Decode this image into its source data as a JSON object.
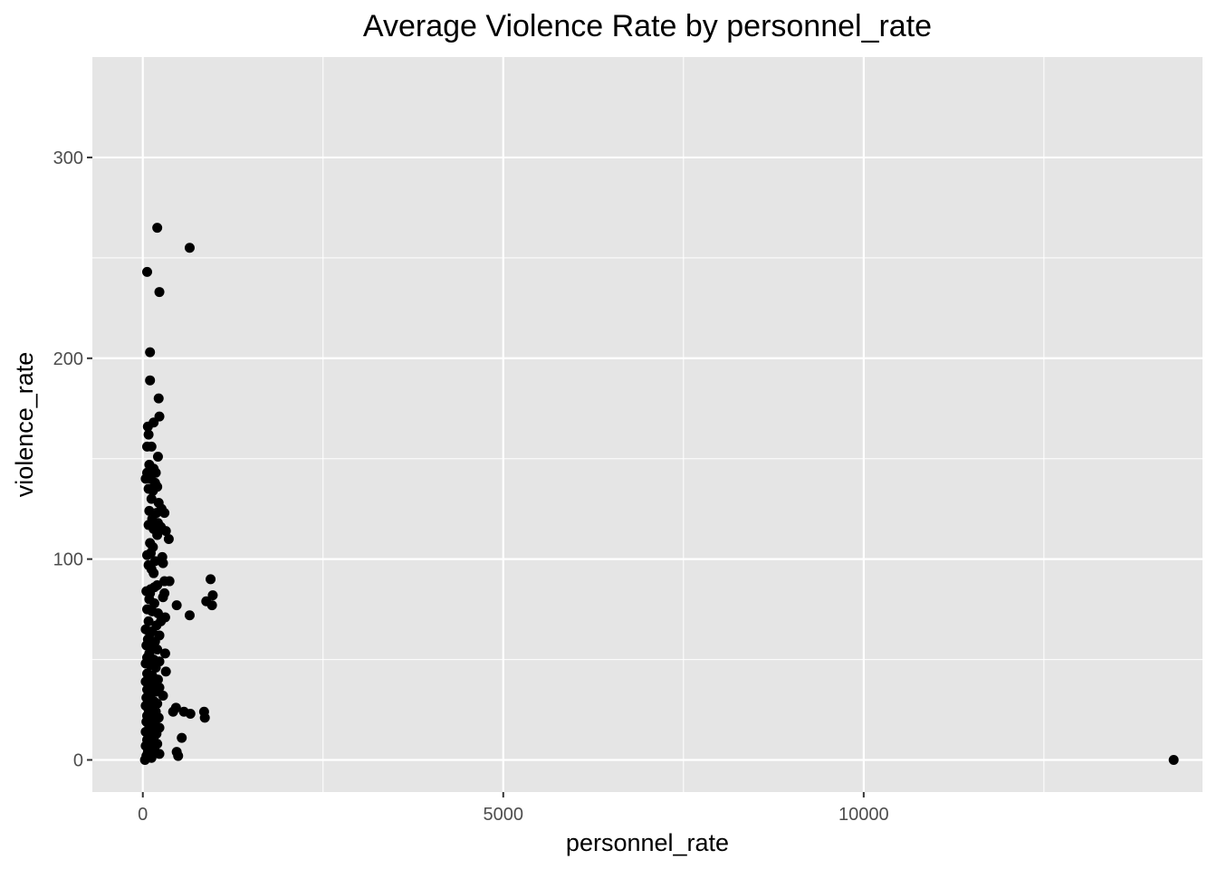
{
  "chart_data": {
    "type": "scatter",
    "title": "Average Violence Rate by personnel_rate",
    "xlabel": "personnel_rate",
    "ylabel": "violence_rate",
    "xlim": [
      -700,
      14700
    ],
    "ylim": [
      -16,
      350
    ],
    "x_ticks": [
      0,
      5000,
      10000
    ],
    "x_tick_labels": [
      "0",
      "5000",
      "10000"
    ],
    "x_minor_ticks": [
      2500,
      7500,
      12500
    ],
    "y_ticks": [
      0,
      100,
      200,
      300
    ],
    "y_tick_labels": [
      "0",
      "100",
      "200",
      "300"
    ],
    "y_minor_ticks": [
      50,
      150,
      250
    ],
    "grid": true,
    "legend": "none",
    "colors": {
      "panel": "#e5e5e5",
      "grid": "#ffffff",
      "point": "#000000",
      "tick": "#333333"
    },
    "points": [
      [
        200,
        265
      ],
      [
        650,
        255
      ],
      [
        60,
        243
      ],
      [
        230,
        233
      ],
      [
        100,
        203
      ],
      [
        100,
        189
      ],
      [
        220,
        180
      ],
      [
        230,
        171
      ],
      [
        150,
        168
      ],
      [
        70,
        166
      ],
      [
        80,
        162
      ],
      [
        60,
        156
      ],
      [
        120,
        156
      ],
      [
        210,
        151
      ],
      [
        90,
        147
      ],
      [
        150,
        145
      ],
      [
        60,
        143
      ],
      [
        180,
        143
      ],
      [
        40,
        140
      ],
      [
        110,
        140
      ],
      [
        170,
        138
      ],
      [
        200,
        136
      ],
      [
        80,
        135
      ],
      [
        140,
        134
      ],
      [
        120,
        130
      ],
      [
        220,
        128
      ],
      [
        260,
        125
      ],
      [
        300,
        123
      ],
      [
        90,
        124
      ],
      [
        190,
        123
      ],
      [
        130,
        120
      ],
      [
        210,
        118
      ],
      [
        80,
        117
      ],
      [
        250,
        116
      ],
      [
        150,
        115
      ],
      [
        320,
        114
      ],
      [
        200,
        112
      ],
      [
        360,
        110
      ],
      [
        100,
        108
      ],
      [
        140,
        106
      ],
      [
        110,
        103
      ],
      [
        60,
        102
      ],
      [
        270,
        101
      ],
      [
        170,
        99
      ],
      [
        280,
        98
      ],
      [
        80,
        97
      ],
      [
        120,
        95
      ],
      [
        150,
        93
      ],
      [
        940,
        90
      ],
      [
        300,
        89
      ],
      [
        370,
        89
      ],
      [
        200,
        87
      ],
      [
        160,
        86
      ],
      [
        110,
        85
      ],
      [
        50,
        84
      ],
      [
        100,
        83
      ],
      [
        300,
        83
      ],
      [
        970,
        82
      ],
      [
        280,
        81
      ],
      [
        90,
        80
      ],
      [
        880,
        79
      ],
      [
        160,
        78
      ],
      [
        960,
        77
      ],
      [
        470,
        77
      ],
      [
        60,
        75
      ],
      [
        130,
        74
      ],
      [
        210,
        73
      ],
      [
        650,
        72
      ],
      [
        310,
        71
      ],
      [
        250,
        69
      ],
      [
        80,
        69
      ],
      [
        190,
        67
      ],
      [
        40,
        65
      ],
      [
        130,
        64
      ],
      [
        100,
        63
      ],
      [
        230,
        62
      ],
      [
        70,
        60
      ],
      [
        170,
        59
      ],
      [
        50,
        57
      ],
      [
        140,
        56
      ],
      [
        200,
        55
      ],
      [
        90,
        53
      ],
      [
        310,
        53
      ],
      [
        60,
        51
      ],
      [
        150,
        50
      ],
      [
        230,
        49
      ],
      [
        40,
        48
      ],
      [
        110,
        47
      ],
      [
        180,
        46
      ],
      [
        320,
        44
      ],
      [
        60,
        43
      ],
      [
        130,
        42
      ],
      [
        80,
        41
      ],
      [
        210,
        40
      ],
      [
        40,
        39
      ],
      [
        150,
        38
      ],
      [
        100,
        37
      ],
      [
        230,
        36
      ],
      [
        60,
        35
      ],
      [
        180,
        34
      ],
      [
        120,
        33
      ],
      [
        280,
        32
      ],
      [
        50,
        31
      ],
      [
        90,
        30
      ],
      [
        160,
        29
      ],
      [
        200,
        28
      ],
      [
        40,
        27
      ],
      [
        120,
        26
      ],
      [
        460,
        26
      ],
      [
        80,
        25
      ],
      [
        180,
        24
      ],
      [
        420,
        24
      ],
      [
        570,
        24
      ],
      [
        660,
        23
      ],
      [
        850,
        24
      ],
      [
        140,
        23
      ],
      [
        60,
        22
      ],
      [
        860,
        21
      ],
      [
        220,
        21
      ],
      [
        100,
        20
      ],
      [
        50,
        19
      ],
      [
        170,
        18
      ],
      [
        90,
        17
      ],
      [
        230,
        16
      ],
      [
        130,
        15
      ],
      [
        40,
        14
      ],
      [
        190,
        13
      ],
      [
        80,
        12
      ],
      [
        540,
        11
      ],
      [
        150,
        11
      ],
      [
        60,
        10
      ],
      [
        110,
        9
      ],
      [
        200,
        8
      ],
      [
        40,
        7
      ],
      [
        130,
        6
      ],
      [
        160,
        5
      ],
      [
        470,
        4
      ],
      [
        70,
        4
      ],
      [
        230,
        3
      ],
      [
        490,
        2
      ],
      [
        50,
        2
      ],
      [
        120,
        1
      ],
      [
        30,
        0
      ],
      [
        14300,
        0
      ]
    ]
  }
}
